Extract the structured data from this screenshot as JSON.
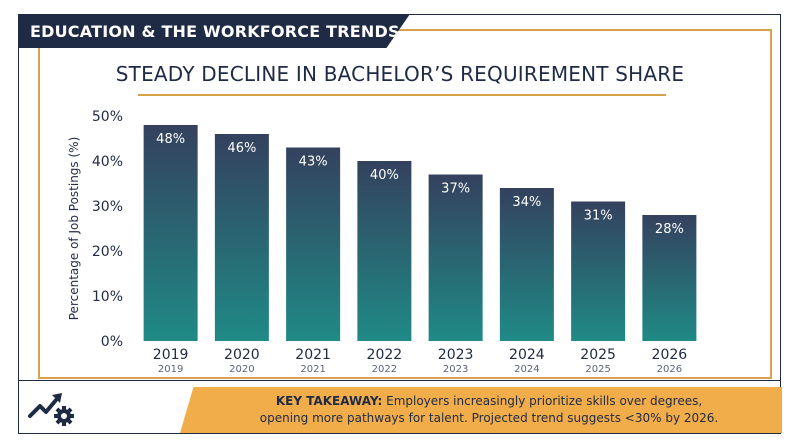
{
  "header": {
    "title": "EDUCATION & THE WORKFORCE TRENDS"
  },
  "footer": {
    "takeaway_label": "KEY TAKEAWAY:",
    "takeaway_line1": "Employers increasingly prioritize skills over degrees,",
    "takeaway_line2": "opening more pathways for talent. Projected trend suggests <30% by 2026."
  },
  "icons": {
    "trend": "trend-chart-gear-icon"
  },
  "colors": {
    "navy": "#1f2a44",
    "gold": "#d8a24a",
    "orange": "#f2ad4b",
    "teal": "#1f8a86",
    "slate": "#34415e"
  },
  "chart_data": {
    "type": "bar",
    "title": "STEADY DECLINE IN BACHELOR’S REQUIREMENT SHARE",
    "ylabel": "Percentage of Job Postings (%)",
    "xlabel": "",
    "categories": [
      "2019",
      "2020",
      "2021",
      "2022",
      "2023",
      "2024",
      "2025",
      "2026"
    ],
    "sublabels": [
      "2019",
      "2020",
      "2021",
      "2022",
      "2023",
      "2024",
      "2025",
      "2026"
    ],
    "values": [
      48,
      46,
      43,
      40,
      37,
      34,
      31,
      28
    ],
    "data_labels": [
      "48%",
      "46%",
      "43%",
      "40%",
      "37%",
      "34%",
      "31%",
      "28%"
    ],
    "ylim": [
      0,
      50
    ],
    "yticks": [
      0,
      10,
      20,
      30,
      40,
      50
    ],
    "ytick_labels": [
      "0%",
      "10%",
      "20%",
      "30%",
      "40%",
      "50%"
    ],
    "grid": false,
    "legend": "none"
  }
}
